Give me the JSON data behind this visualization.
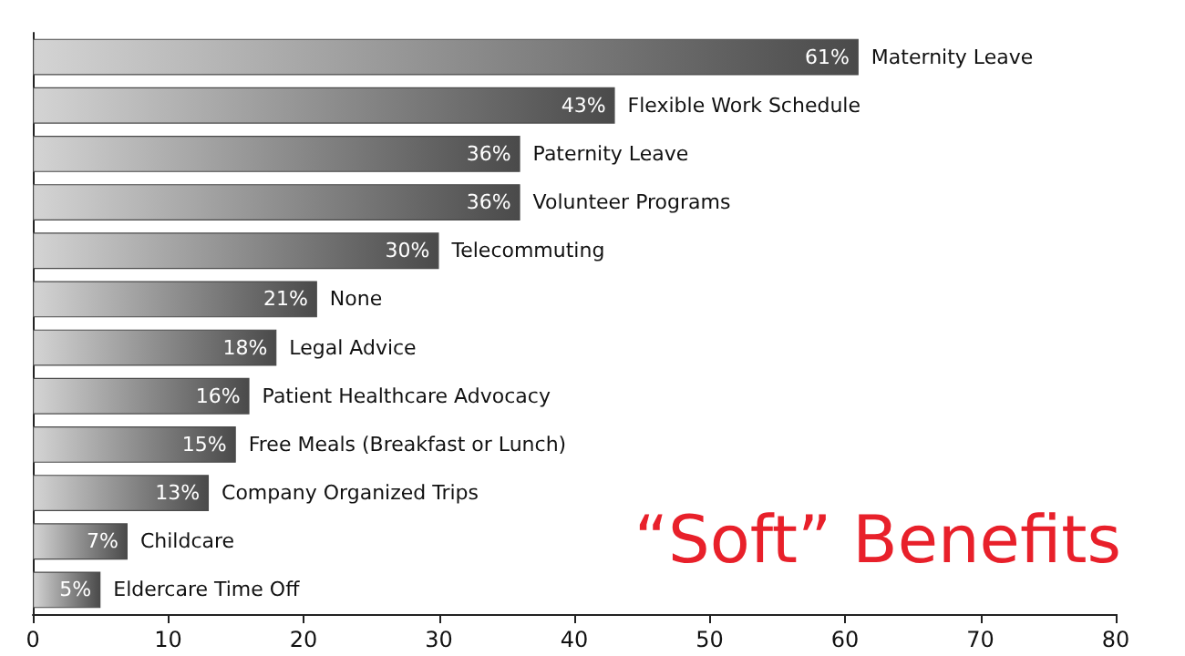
{
  "chart_data": {
    "type": "bar",
    "orientation": "horizontal",
    "title": "“Soft” Benefits",
    "categories": [
      "Maternity Leave",
      "Flexible Work Schedule",
      "Paternity Leave",
      "Volunteer Programs",
      "Telecommuting",
      "None",
      "Legal Advice",
      "Patient Healthcare Advocacy",
      "Free Meals (Breakfast or Lunch)",
      "Company Organized Trips",
      "Childcare",
      "Eldercare Time Off"
    ],
    "values": [
      61,
      43,
      36,
      36,
      30,
      21,
      18,
      16,
      15,
      13,
      7,
      5
    ],
    "value_labels": [
      "61%",
      "43%",
      "36%",
      "36%",
      "30%",
      "21%",
      "18%",
      "16%",
      "15%",
      "13%",
      "7%",
      "5%"
    ],
    "color": "#4a4a4a",
    "xlim": [
      0,
      80
    ],
    "xticks": [
      0,
      10,
      20,
      30,
      40,
      50,
      60,
      70,
      80
    ],
    "grid": false
  }
}
